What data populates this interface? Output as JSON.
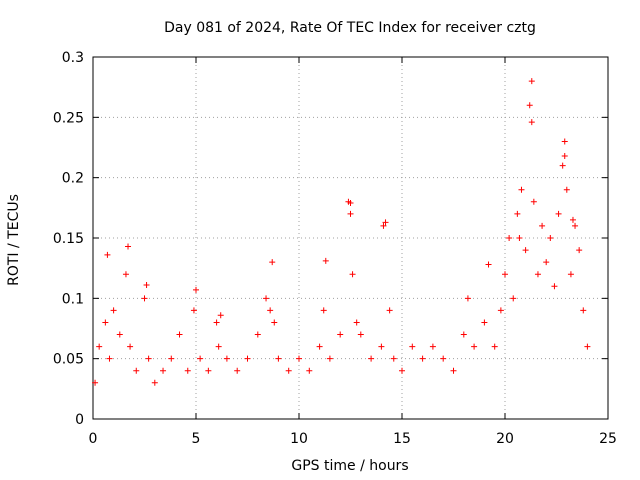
{
  "chart_data": {
    "type": "scatter",
    "title": "Day 081 of 2024, Rate Of TEC Index for receiver cztg",
    "xlabel": "GPS time / hours",
    "ylabel": "ROTI / TECUs",
    "xlim": [
      0,
      25
    ],
    "ylim": [
      0,
      0.3
    ],
    "xticks": [
      0,
      5,
      10,
      15,
      20,
      25
    ],
    "xtick_labels": [
      "0",
      "5",
      "10",
      "15",
      "20",
      "25"
    ],
    "yticks": [
      0,
      0.05,
      0.1,
      0.15,
      0.2,
      0.25,
      0.3
    ],
    "ytick_labels": [
      "0",
      "0.05",
      "0.1",
      "0.15",
      "0.2",
      "0.25",
      "0.3"
    ],
    "grid": true,
    "marker": "+",
    "series": [
      {
        "name": "ROTI",
        "color": "#ff0000",
        "x": [
          0.1,
          0.3,
          0.6,
          0.8,
          1.0,
          1.3,
          1.6,
          1.8,
          2.1,
          2.5,
          2.7,
          3.0,
          3.4,
          3.8,
          4.2,
          4.6,
          4.9,
          5.2,
          5.6,
          6.0,
          6.1,
          6.5,
          7.0,
          7.5,
          8.0,
          8.4,
          8.6,
          8.8,
          9.0,
          9.5,
          10.0,
          10.5,
          11.0,
          11.2,
          11.5,
          12.0,
          12.4,
          12.5,
          12.6,
          12.8,
          13.0,
          13.5,
          14.0,
          14.1,
          14.4,
          14.6,
          15.0,
          15.5,
          16.0,
          16.5,
          17.0,
          17.5,
          18.0,
          18.5,
          19.0,
          19.5,
          19.8,
          20.0,
          20.2,
          20.4,
          20.6,
          20.8,
          21.0,
          21.2,
          21.3,
          21.4,
          21.6,
          21.8,
          22.0,
          22.2,
          22.4,
          22.6,
          22.8,
          22.9,
          23.0,
          23.2,
          23.4,
          23.6,
          23.8,
          24.0,
          0.7,
          1.7,
          2.6,
          5.0,
          6.2,
          8.7,
          11.3,
          12.5,
          14.2,
          18.2,
          19.2,
          20.7,
          21.3,
          22.9,
          23.3
        ],
        "values": [
          0.03,
          0.06,
          0.08,
          0.05,
          0.09,
          0.07,
          0.12,
          0.06,
          0.04,
          0.1,
          0.05,
          0.03,
          0.04,
          0.05,
          0.07,
          0.04,
          0.09,
          0.05,
          0.04,
          0.08,
          0.06,
          0.05,
          0.04,
          0.05,
          0.07,
          0.1,
          0.09,
          0.08,
          0.05,
          0.04,
          0.05,
          0.04,
          0.06,
          0.09,
          0.05,
          0.07,
          0.18,
          0.17,
          0.12,
          0.08,
          0.07,
          0.05,
          0.06,
          0.16,
          0.09,
          0.05,
          0.04,
          0.06,
          0.05,
          0.06,
          0.05,
          0.04,
          0.07,
          0.06,
          0.08,
          0.06,
          0.09,
          0.12,
          0.15,
          0.1,
          0.17,
          0.19,
          0.14,
          0.26,
          0.28,
          0.18,
          0.12,
          0.16,
          0.13,
          0.15,
          0.11,
          0.17,
          0.21,
          0.23,
          0.19,
          0.12,
          0.16,
          0.14,
          0.09,
          0.06,
          0.136,
          0.143,
          0.111,
          0.107,
          0.086,
          0.13,
          0.131,
          0.179,
          0.163,
          0.1,
          0.128,
          0.15,
          0.246,
          0.218,
          0.165
        ]
      }
    ]
  }
}
